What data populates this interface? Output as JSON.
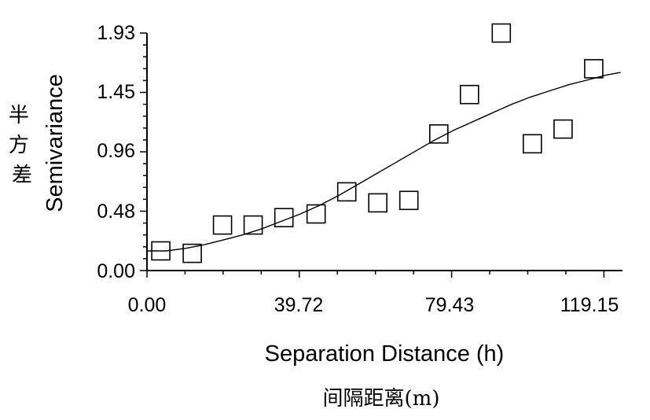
{
  "chart_data": {
    "type": "scatter",
    "xlabel": "Separation Distance (h)",
    "ylabel": "Semivariance",
    "xlabel_cn": "间隔距离(m)",
    "ylabel_cn": "半方差",
    "xlim": [
      0,
      124
    ],
    "ylim": [
      0,
      1.93
    ],
    "x_ticks": [
      "0.00",
      "39.72",
      "79.43",
      "119.15"
    ],
    "y_ticks": [
      "0.00",
      "0.48",
      "0.96",
      "1.45",
      "1.93"
    ],
    "points": [
      {
        "x": 3.6,
        "y": 0.16
      },
      {
        "x": 11.8,
        "y": 0.14
      },
      {
        "x": 19.7,
        "y": 0.37
      },
      {
        "x": 27.7,
        "y": 0.37
      },
      {
        "x": 35.7,
        "y": 0.43
      },
      {
        "x": 44.1,
        "y": 0.46
      },
      {
        "x": 52.1,
        "y": 0.64
      },
      {
        "x": 60.2,
        "y": 0.55
      },
      {
        "x": 68.3,
        "y": 0.57
      },
      {
        "x": 76.1,
        "y": 1.11
      },
      {
        "x": 84.1,
        "y": 1.43
      },
      {
        "x": 92.4,
        "y": 1.93
      },
      {
        "x": 100.5,
        "y": 1.03
      },
      {
        "x": 108.5,
        "y": 1.15
      },
      {
        "x": 116.5,
        "y": 1.64
      }
    ],
    "fit_line": {
      "x": [
        0,
        5,
        10,
        15,
        20,
        25,
        30,
        35,
        40,
        45,
        50,
        55,
        60,
        65,
        70,
        75,
        80,
        85,
        90,
        95,
        100,
        105,
        110,
        115,
        120,
        123.5
      ],
      "y": [
        0.16,
        0.16,
        0.18,
        0.21,
        0.25,
        0.29,
        0.34,
        0.4,
        0.46,
        0.53,
        0.61,
        0.7,
        0.79,
        0.88,
        0.97,
        1.06,
        1.14,
        1.21,
        1.28,
        1.35,
        1.41,
        1.46,
        1.51,
        1.55,
        1.59,
        1.61
      ]
    },
    "grid": false
  }
}
